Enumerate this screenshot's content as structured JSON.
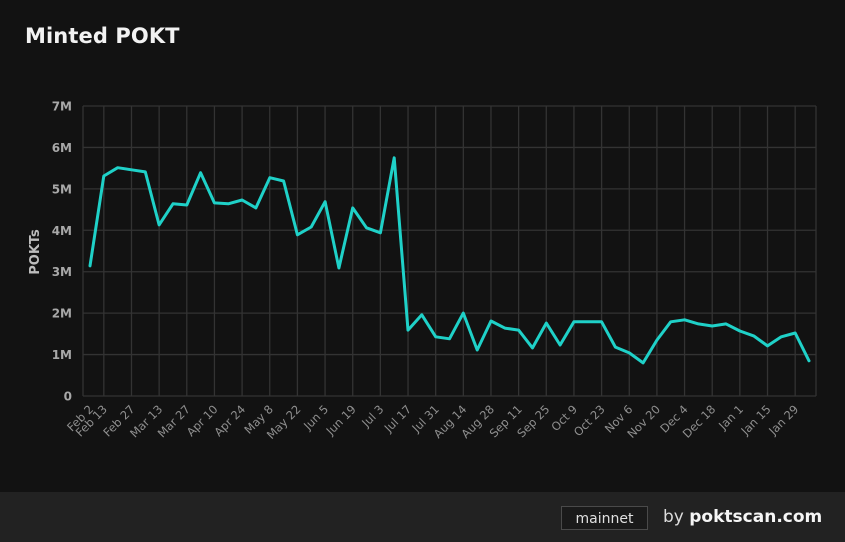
{
  "title": "Minted POKT",
  "footer": {
    "network_badge": "mainnet",
    "by_label": "by",
    "site_label": "poktscan.com"
  },
  "colors": {
    "background": "#121212",
    "line": "#1fd1c8",
    "grid": "#333333",
    "footer_bg": "#222222"
  },
  "chart_data": {
    "type": "line",
    "title": "Minted POKT",
    "xlabel": "",
    "ylabel": "POKTs",
    "ylim": [
      0,
      7000000
    ],
    "yticks": [
      "0",
      "1M",
      "2M",
      "3M",
      "4M",
      "5M",
      "6M",
      "7M"
    ],
    "xtick_labels": [
      "Feb 2",
      "Feb 13",
      "Feb 27",
      "Mar 13",
      "Mar 27",
      "Apr 10",
      "Apr 24",
      "May 8",
      "May 22",
      "Jun 5",
      "Jun 19",
      "Jul 3",
      "Jul 17",
      "Jul 31",
      "Aug 14",
      "Aug 28",
      "Sep 11",
      "Sep 25",
      "Oct 9",
      "Oct 23",
      "Nov 6",
      "Nov 20",
      "Dec 4",
      "Dec 18",
      "Jan 1",
      "Jan 15",
      "Jan 29"
    ],
    "grid": true,
    "legend": "none",
    "series": [
      {
        "name": "Minted POKT",
        "values": [
          3.14,
          5.31,
          5.51,
          5.46,
          5.41,
          4.13,
          4.64,
          4.61,
          5.39,
          4.66,
          4.64,
          4.73,
          4.54,
          5.27,
          5.19,
          3.89,
          4.08,
          4.69,
          3.09,
          4.54,
          4.06,
          3.94,
          5.75,
          1.59,
          1.96,
          1.43,
          1.38,
          2.0,
          1.11,
          1.81,
          1.64,
          1.59,
          1.16,
          1.76,
          1.23,
          1.79,
          1.79,
          1.79,
          1.18,
          1.04,
          0.8,
          1.35,
          1.79,
          1.84,
          1.74,
          1.69,
          1.74,
          1.57,
          1.45,
          1.21,
          1.43,
          1.52,
          0.85
        ],
        "unit": "M"
      }
    ]
  }
}
